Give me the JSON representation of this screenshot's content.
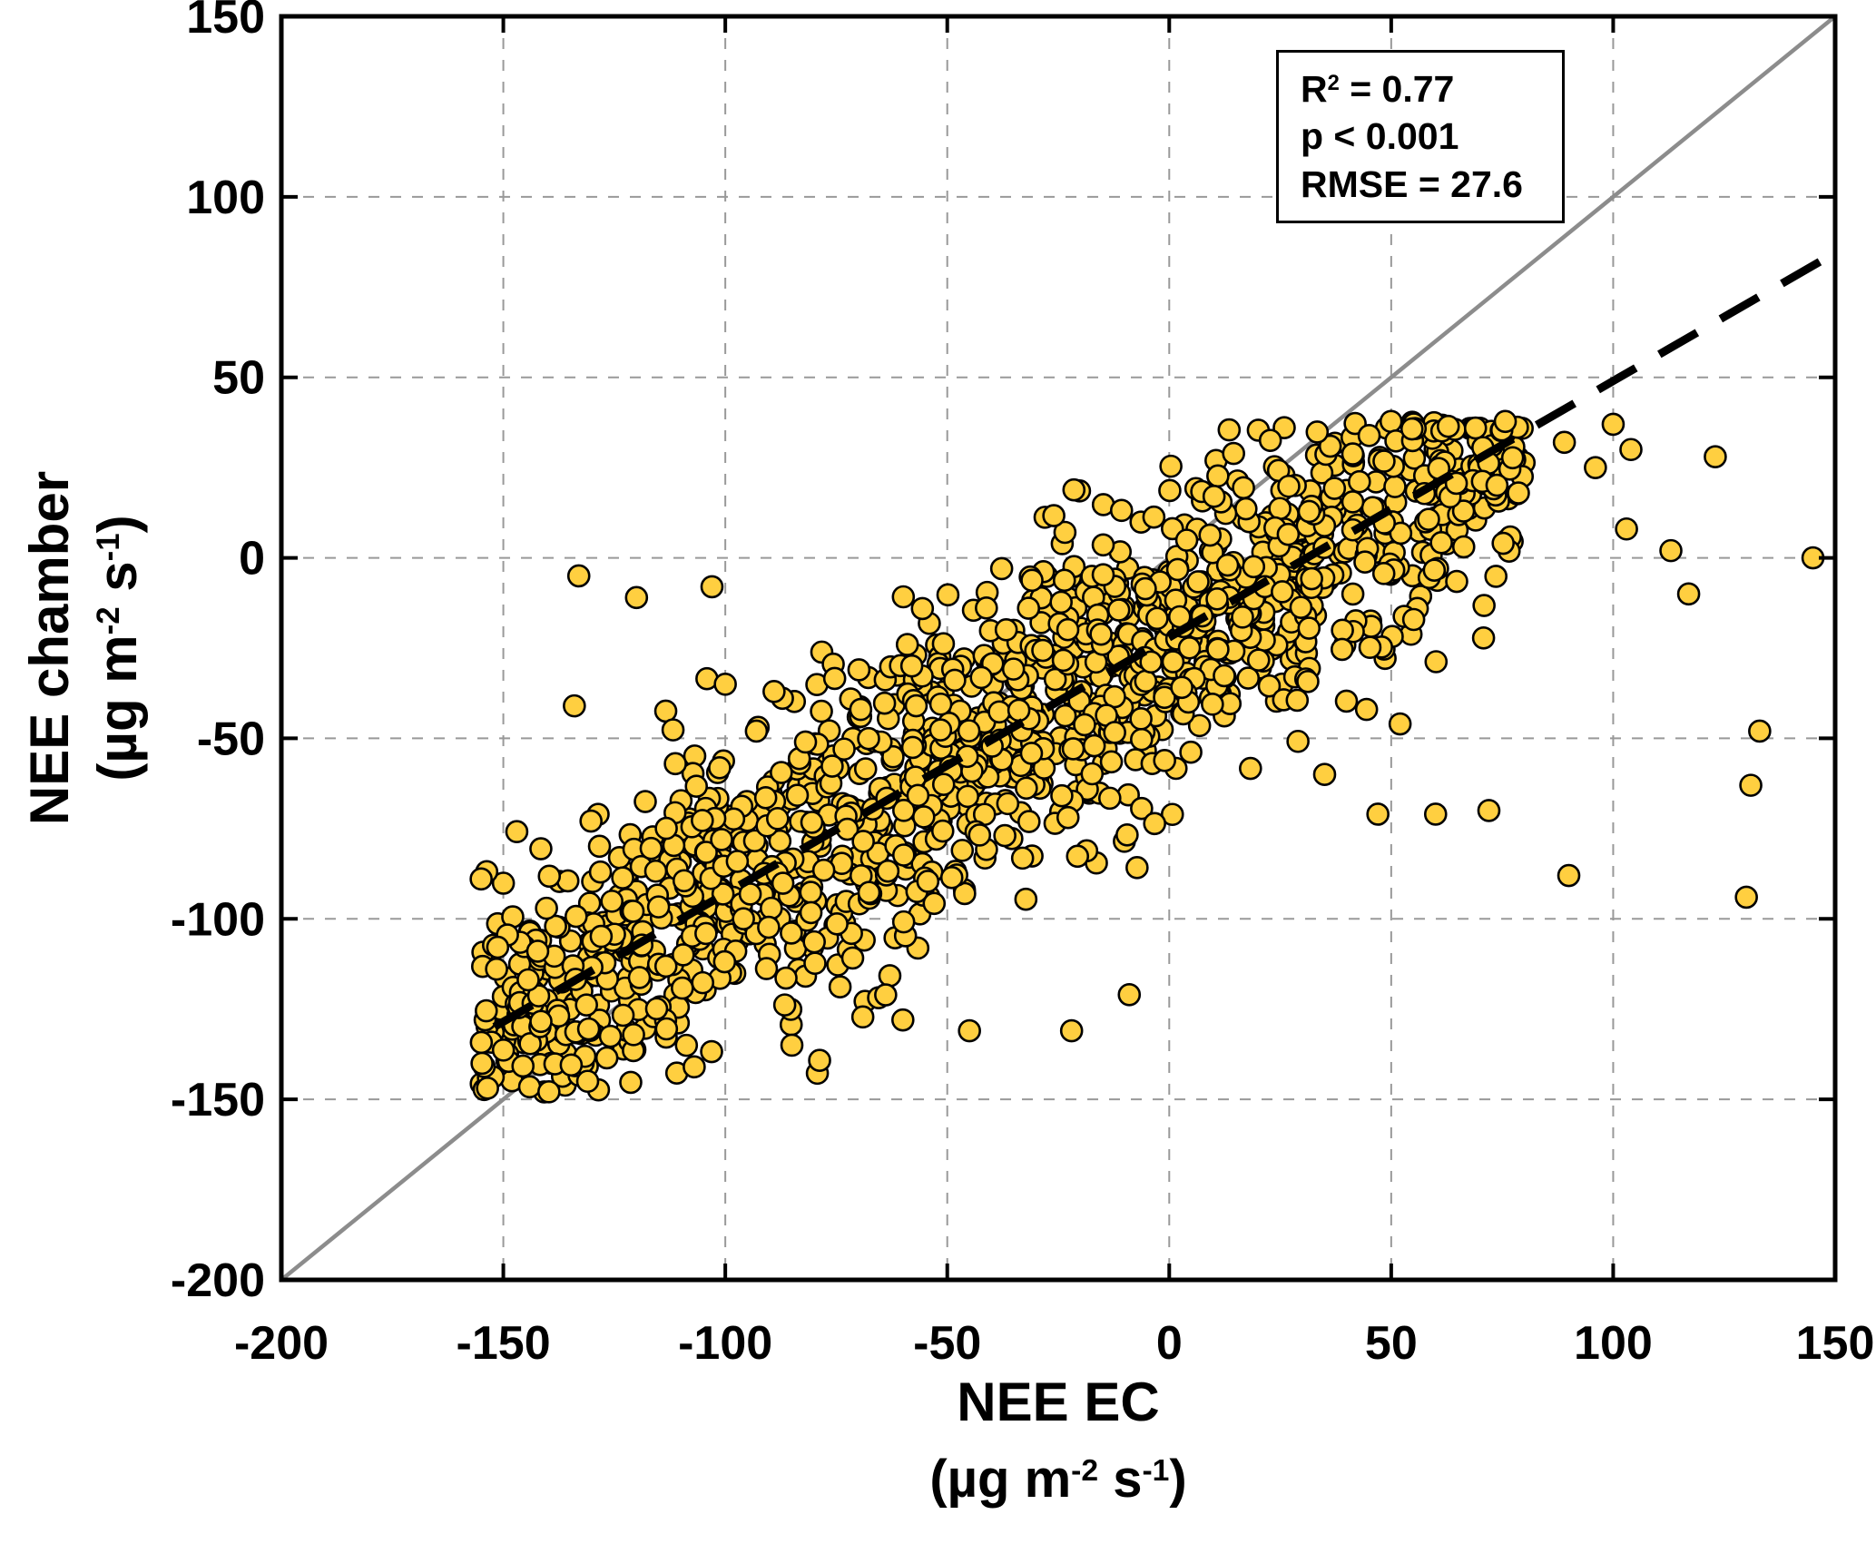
{
  "chart_data": {
    "type": "scatter",
    "title": "",
    "xlabel": {
      "name": "NEE EC",
      "unit": {
        "prefix": "(µg m",
        "sup1": "-2",
        "mid": " s",
        "sup2": "-1",
        "suffix": ")"
      }
    },
    "ylabel": {
      "name": "NEE chamber",
      "unit": {
        "prefix": "(µg m",
        "sup1": "-2",
        "mid": " s",
        "sup2": "-1",
        "suffix": ")"
      }
    },
    "xlim": [
      -200,
      150
    ],
    "ylim": [
      -200,
      150
    ],
    "x_ticks": [
      -200,
      -150,
      -100,
      -50,
      0,
      50,
      100,
      150
    ],
    "y_ticks": [
      -200,
      -150,
      -100,
      -50,
      0,
      50,
      100,
      150
    ],
    "grid": "dashed",
    "grid_color": "#999999",
    "one_to_one_line": {
      "from": [
        -200,
        -200
      ],
      "to": [
        150,
        150
      ],
      "color": "#8c8c8c",
      "style": "solid"
    },
    "fit_line": {
      "slope": 0.71,
      "intercept": -22,
      "x_start": -152,
      "x_end": 148,
      "style": "dashed",
      "color": "#000000"
    },
    "stats_box": {
      "r2_base": "R",
      "r2_sup": "2",
      "r2_rest": " = 0.77",
      "p_line": "p < 0.001",
      "rmse_line": "RMSE = 27.6"
    },
    "points_style": {
      "fill": "#FFCF40",
      "stroke": "#000000",
      "radius_px": 11.5,
      "stroke_width": 2.6
    },
    "scatter_generation": {
      "seed": 123456789,
      "n": 1450,
      "slope": 0.71,
      "intercept": -22,
      "noise_sd": 21,
      "x_bands": [
        {
          "weight": 0.4,
          "min": -155,
          "max": -60
        },
        {
          "weight": 0.46,
          "min": -60,
          "max": 35
        },
        {
          "weight": 0.14,
          "min": 35,
          "max": 80
        }
      ],
      "y_clip": {
        "max": 38,
        "min": -148
      }
    },
    "outlier_points": [
      [
        -133,
        -5
      ],
      [
        -120,
        -11
      ],
      [
        -103,
        -8
      ],
      [
        -100,
        -35
      ],
      [
        -134,
        -41
      ],
      [
        -93,
        -48
      ],
      [
        -131,
        -145
      ],
      [
        -107,
        -141
      ],
      [
        -85,
        -135
      ],
      [
        -60,
        -128
      ],
      [
        -45,
        -131
      ],
      [
        -22,
        -131
      ],
      [
        -9,
        -121
      ],
      [
        145,
        0
      ],
      [
        133,
        -48
      ],
      [
        131,
        -63
      ],
      [
        130,
        -94
      ],
      [
        90,
        -88
      ],
      [
        117,
        -10
      ],
      [
        113,
        2
      ],
      [
        103,
        8
      ],
      [
        100,
        37
      ],
      [
        104,
        30
      ],
      [
        123,
        28
      ],
      [
        89,
        32
      ],
      [
        96,
        25
      ],
      [
        72,
        -70
      ],
      [
        60,
        -71
      ],
      [
        47,
        -71
      ],
      [
        35,
        -60
      ],
      [
        52,
        -46
      ]
    ]
  }
}
